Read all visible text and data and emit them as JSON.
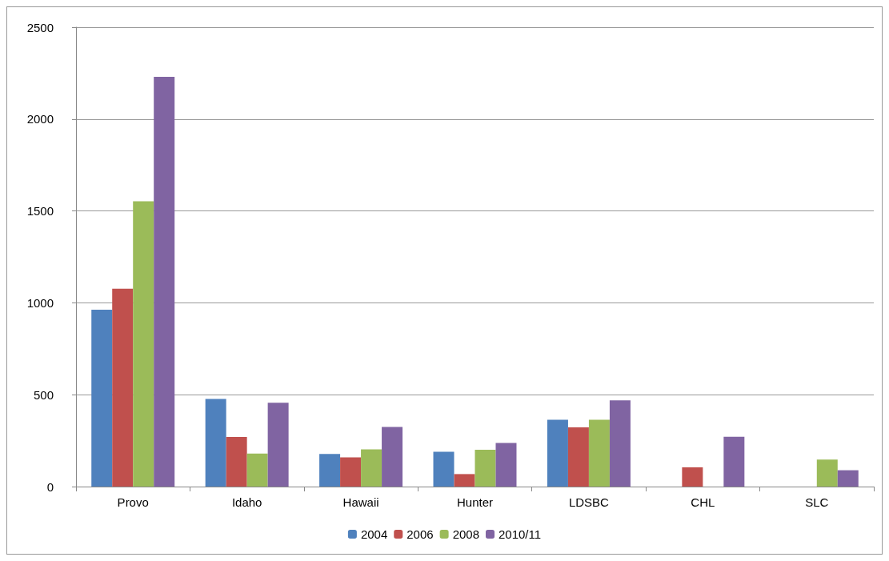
{
  "chart_data": {
    "type": "bar",
    "categories": [
      "Provo",
      "Idaho",
      "Hawaii",
      "Hunter",
      "LDSBC",
      "CHL",
      "SLC"
    ],
    "series": [
      {
        "name": "2004",
        "color": "#4f81bd",
        "values": [
          962,
          477,
          177,
          189,
          364,
          null,
          null
        ]
      },
      {
        "name": "2006",
        "color": "#c0504d",
        "values": [
          1077,
          270,
          159,
          68,
          322,
          105,
          null
        ]
      },
      {
        "name": "2008",
        "color": "#9bbb59",
        "values": [
          1553,
          180,
          203,
          200,
          364,
          null,
          147
        ]
      },
      {
        "name": "2010/11",
        "color": "#8064a2",
        "values": [
          2230,
          456,
          325,
          237,
          469,
          271,
          89
        ]
      }
    ],
    "ylim": [
      0,
      2500
    ],
    "yticks": [
      0,
      500,
      1000,
      1500,
      2000,
      2500
    ],
    "grid": "y",
    "legend": "bottom"
  }
}
